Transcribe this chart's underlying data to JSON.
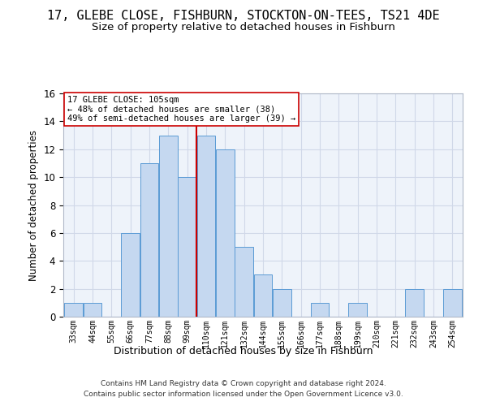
{
  "title": "17, GLEBE CLOSE, FISHBURN, STOCKTON-ON-TEES, TS21 4DE",
  "subtitle": "Size of property relative to detached houses in Fishburn",
  "xlabel": "Distribution of detached houses by size in Fishburn",
  "ylabel": "Number of detached properties",
  "footnote1": "Contains HM Land Registry data © Crown copyright and database right 2024.",
  "footnote2": "Contains public sector information licensed under the Open Government Licence v3.0.",
  "annotation_title": "17 GLEBE CLOSE: 105sqm",
  "annotation_line1": "← 48% of detached houses are smaller (38)",
  "annotation_line2": "49% of semi-detached houses are larger (39) →",
  "bar_labels": [
    "33sqm",
    "44sqm",
    "55sqm",
    "66sqm",
    "77sqm",
    "88sqm",
    "99sqm",
    "110sqm",
    "121sqm",
    "132sqm",
    "144sqm",
    "155sqm",
    "166sqm",
    "177sqm",
    "188sqm",
    "199sqm",
    "210sqm",
    "221sqm",
    "232sqm",
    "243sqm",
    "254sqm"
  ],
  "bar_values": [
    1,
    1,
    0,
    6,
    11,
    13,
    10,
    13,
    12,
    5,
    3,
    2,
    0,
    1,
    0,
    1,
    0,
    0,
    2,
    0,
    2
  ],
  "bar_color": "#c5d8f0",
  "bar_edge_color": "#5b9bd5",
  "grid_color": "#d0d8e8",
  "bg_color": "#eef3fa",
  "vline_color": "#cc0000",
  "vline_x": 105,
  "ylim": [
    0,
    16
  ],
  "yticks": [
    0,
    2,
    4,
    6,
    8,
    10,
    12,
    14,
    16
  ],
  "annotation_box_color": "#cc0000",
  "title_fontsize": 11,
  "subtitle_fontsize": 9.5
}
